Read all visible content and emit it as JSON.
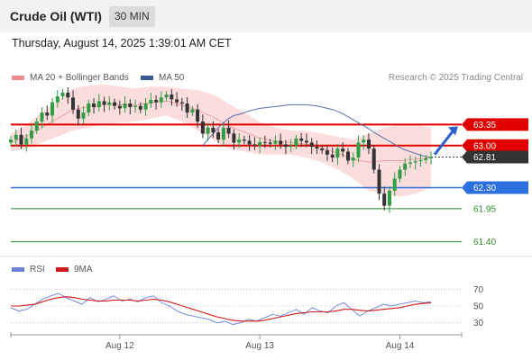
{
  "header": {
    "instrument": "Crude Oil (WTI)",
    "timeframe": "30 MIN"
  },
  "datetime": "Thursday, August 14, 2025 1:39:01 AM CET",
  "credit": "Research © 2025 Trading Central",
  "legend_main": [
    {
      "label": "MA 20 + Bollinger Bands",
      "color": "#f08a8a"
    },
    {
      "label": "MA 50",
      "color": "#3a5a94"
    }
  ],
  "legend_rsi": [
    {
      "label": "RSI",
      "color": "#6b7fd6"
    },
    {
      "label": "9MA",
      "color": "#d11a1a"
    }
  ],
  "chart_data": [
    {
      "type": "candlestick",
      "ylim": [
        61.2,
        64.0
      ],
      "x_ticks": [
        {
          "label": "Aug 12",
          "index": 21
        },
        {
          "label": "Aug 13",
          "index": 48
        },
        {
          "label": "Aug 14",
          "index": 75
        }
      ],
      "levels": [
        {
          "label": "63.35",
          "value": 63.35,
          "color": "#e00000",
          "style": "red-thick",
          "badge": true
        },
        {
          "label": "63.00",
          "value": 63.0,
          "color": "#e00000",
          "style": "red-thick",
          "badge": true
        },
        {
          "label": "62.81",
          "value": 62.81,
          "color": "#333333",
          "style": "current",
          "badge": true
        },
        {
          "label": "62.30",
          "value": 62.3,
          "color": "#2e6fe0",
          "style": "blue",
          "badge": true
        },
        {
          "label": "61.95",
          "value": 61.95,
          "color": "#2e8b2e",
          "style": "green",
          "badge": false
        },
        {
          "label": "61.40",
          "value": 61.4,
          "color": "#2e8b2e",
          "style": "green",
          "badge": false
        }
      ],
      "close": [
        63.1,
        63.18,
        63.02,
        63.12,
        63.25,
        63.4,
        63.55,
        63.5,
        63.72,
        63.82,
        63.88,
        63.8,
        63.6,
        63.45,
        63.55,
        63.7,
        63.64,
        63.74,
        63.68,
        63.72,
        63.66,
        63.62,
        63.7,
        63.64,
        63.66,
        63.6,
        63.7,
        63.76,
        63.72,
        63.8,
        63.85,
        63.77,
        63.72,
        63.7,
        63.55,
        63.6,
        63.4,
        63.2,
        63.3,
        63.22,
        63.1,
        63.3,
        63.2,
        63.05,
        63.1,
        63.08,
        63.02,
        63.0,
        63.06,
        63.05,
        63.03,
        63.08,
        63.02,
        62.98,
        63.0,
        63.12,
        63.08,
        63.05,
        62.98,
        62.95,
        62.92,
        62.85,
        62.8,
        62.95,
        62.9,
        62.75,
        62.8,
        63.05,
        63.1,
        62.95,
        62.6,
        62.2,
        62.0,
        62.25,
        62.45,
        62.6,
        62.7,
        62.72,
        62.74,
        62.76,
        62.79,
        62.81
      ],
      "ma50": [
        63.0,
        63.1,
        63.2,
        63.3,
        63.38,
        63.45,
        63.5,
        63.52,
        63.55,
        63.58,
        63.6,
        63.62,
        63.63,
        63.64,
        63.65,
        63.66,
        63.67,
        63.68,
        63.68,
        63.68,
        63.68,
        63.67,
        63.66,
        63.64,
        63.62,
        63.6,
        63.57,
        63.53,
        63.48,
        63.43,
        63.38,
        63.33,
        63.28,
        63.22,
        63.17,
        63.12,
        63.07,
        63.02,
        62.97,
        62.93,
        62.9,
        62.87,
        62.84,
        62.82,
        62.8
      ],
      "ma50_start": 37,
      "bands": {
        "upper": [
          63.2,
          63.35,
          63.55,
          63.75,
          63.95,
          64.0,
          64.02,
          63.98,
          63.95,
          63.98,
          63.98,
          63.95,
          63.92,
          63.85,
          63.7,
          63.55,
          63.4,
          63.3,
          63.25,
          63.25,
          63.2,
          63.15,
          63.1,
          63.2,
          63.3,
          63.35,
          63.35,
          63.3
        ],
        "lower": [
          62.9,
          62.95,
          63.05,
          63.15,
          63.25,
          63.3,
          63.35,
          63.38,
          63.4,
          63.45,
          63.5,
          63.4,
          63.25,
          63.1,
          62.95,
          62.9,
          62.85,
          62.85,
          62.85,
          62.8,
          62.72,
          62.6,
          62.45,
          62.25,
          62.2,
          62.15,
          62.2,
          62.3
        ],
        "step": 3,
        "start": 0
      }
    },
    {
      "type": "line",
      "ylim": [
        20,
        80
      ],
      "y_ticks": [
        70,
        50,
        30
      ],
      "series": [
        {
          "name": "RSI",
          "color": "#6b7fd6",
          "values": [
            48,
            44,
            46,
            52,
            58,
            62,
            65,
            60,
            56,
            52,
            60,
            55,
            58,
            62,
            56,
            58,
            55,
            60,
            62,
            54,
            50,
            44,
            40,
            38,
            36,
            34,
            30,
            32,
            28,
            30,
            34,
            32,
            36,
            40,
            38,
            42,
            46,
            40,
            48,
            44,
            42,
            50,
            54,
            46,
            38,
            44,
            48,
            52,
            50,
            52,
            54,
            56,
            54,
            55
          ]
        },
        {
          "name": "9MA",
          "color": "#d11a1a",
          "values": [
            50,
            50,
            51,
            52,
            55,
            58,
            60,
            61,
            60,
            58,
            57,
            56,
            56,
            57,
            57,
            57,
            56,
            57,
            58,
            57,
            55,
            52,
            49,
            46,
            43,
            40,
            37,
            35,
            33,
            32,
            32,
            32,
            33,
            35,
            37,
            39,
            41,
            42,
            43,
            43,
            43,
            44,
            46,
            46,
            45,
            44,
            45,
            46,
            47,
            48,
            50,
            52,
            53,
            54
          ]
        }
      ]
    }
  ]
}
